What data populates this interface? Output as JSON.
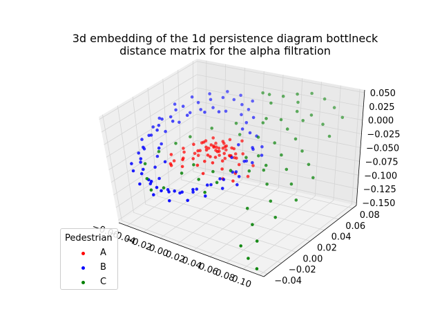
{
  "chart_data": {
    "type": "scatter",
    "projection": "3d",
    "title": [
      "3d embedding of the 1d persistence diagram bottlneck",
      "distance matrix for the alpha filtration"
    ],
    "x_ticks": [
      "−0.06",
      "−0.04",
      "−0.02",
      "0.00",
      "0.02",
      "0.04",
      "0.06",
      "0.08",
      "0.10"
    ],
    "y_ticks": [
      "−0.04",
      "−0.02",
      "0.00",
      "0.02",
      "0.04",
      "0.06",
      "0.08"
    ],
    "z_ticks": [
      "0.050",
      "0.025",
      "0.000",
      "−0.025",
      "−0.050",
      "−0.075",
      "−0.100",
      "−0.125",
      "−0.150"
    ],
    "xlim": [
      -0.07,
      0.105
    ],
    "ylim": [
      -0.045,
      0.085
    ],
    "zlim": [
      -0.155,
      0.055
    ],
    "grid": true,
    "legend": {
      "title": "Pedestrian",
      "placement": "lower-left"
    },
    "series": [
      {
        "name": "A",
        "color": "#ff0000",
        "points": [
          [
            0.0,
            0.02,
            -0.03
          ],
          [
            0.004,
            0.024,
            -0.034
          ],
          [
            -0.004,
            0.018,
            -0.026
          ],
          [
            0.006,
            0.016,
            -0.032
          ],
          [
            -0.002,
            0.026,
            -0.038
          ],
          [
            0.002,
            0.014,
            -0.024
          ],
          [
            0.008,
            0.022,
            -0.028
          ],
          [
            -0.006,
            0.024,
            -0.034
          ],
          [
            0.01,
            0.018,
            -0.036
          ],
          [
            -0.008,
            0.016,
            -0.03
          ],
          [
            0.001,
            0.028,
            -0.026
          ],
          [
            0.005,
            0.012,
            -0.04
          ],
          [
            -0.003,
            0.01,
            -0.028
          ],
          [
            0.012,
            0.026,
            -0.032
          ],
          [
            -0.01,
            0.022,
            -0.038
          ],
          [
            0.003,
            0.02,
            -0.044
          ],
          [
            0.007,
            0.03,
            -0.022
          ],
          [
            -0.005,
            0.014,
            -0.042
          ],
          [
            0.009,
            0.01,
            -0.026
          ],
          [
            -0.001,
            0.032,
            -0.034
          ],
          [
            0.014,
            0.02,
            -0.04
          ],
          [
            -0.012,
            0.018,
            -0.024
          ],
          [
            0.011,
            0.014,
            -0.046
          ],
          [
            -0.007,
            0.028,
            -0.046
          ],
          [
            0.016,
            0.024,
            -0.03
          ],
          [
            -0.014,
            0.012,
            -0.036
          ],
          [
            0.004,
            0.006,
            -0.034
          ],
          [
            0.0,
            0.034,
            -0.04
          ],
          [
            0.018,
            0.016,
            -0.036
          ],
          [
            -0.016,
            0.026,
            -0.03
          ],
          [
            0.006,
            0.024,
            -0.052
          ],
          [
            -0.004,
            0.008,
            -0.048
          ],
          [
            0.013,
            0.03,
            -0.046
          ],
          [
            -0.011,
            0.03,
            -0.026
          ],
          [
            0.02,
            0.022,
            -0.044
          ],
          [
            -0.018,
            0.02,
            -0.044
          ],
          [
            0.008,
            0.004,
            -0.042
          ],
          [
            -0.002,
            0.036,
            -0.05
          ],
          [
            0.022,
            0.012,
            -0.03
          ],
          [
            -0.02,
            0.014,
            -0.028
          ],
          [
            0.01,
            0.032,
            -0.056
          ],
          [
            -0.009,
            0.004,
            -0.054
          ],
          [
            0.024,
            0.026,
            -0.038
          ],
          [
            -0.022,
            0.028,
            -0.038
          ],
          [
            0.015,
            0.008,
            -0.054
          ],
          [
            -0.015,
            0.006,
            -0.046
          ],
          [
            0.026,
            0.018,
            -0.05
          ],
          [
            -0.024,
            0.02,
            -0.052
          ],
          [
            0.017,
            0.034,
            -0.024
          ],
          [
            -0.013,
            0.036,
            -0.042
          ],
          [
            -0.03,
            0.01,
            -0.058
          ],
          [
            -0.034,
            0.016,
            -0.062
          ],
          [
            -0.026,
            0.004,
            -0.064
          ],
          [
            0.028,
            0.01,
            -0.058
          ],
          [
            -0.038,
            0.022,
            -0.05
          ],
          [
            0.032,
            0.03,
            -0.06
          ],
          [
            -0.04,
            0.006,
            -0.07
          ],
          [
            0.03,
            0.004,
            -0.066
          ],
          [
            -0.044,
            0.012,
            -0.056
          ],
          [
            0.0,
            0.0,
            -0.062
          ],
          [
            -0.028,
            0.03,
            -0.066
          ],
          [
            0.034,
            0.02,
            -0.07
          ],
          [
            -0.046,
            0.018,
            -0.074
          ],
          [
            -0.036,
            0.0,
            -0.06
          ],
          [
            0.022,
            0.0,
            -0.062
          ],
          [
            -0.042,
            0.028,
            -0.064
          ]
        ]
      },
      {
        "name": "B",
        "color": "#0000ff",
        "points": [
          [
            -0.05,
            0.04,
            0.01
          ],
          [
            -0.04,
            0.048,
            0.014
          ],
          [
            -0.03,
            0.052,
            0.02
          ],
          [
            -0.02,
            0.056,
            0.024
          ],
          [
            -0.01,
            0.058,
            0.022
          ],
          [
            0.0,
            0.056,
            0.018
          ],
          [
            0.01,
            0.052,
            0.016
          ],
          [
            0.02,
            0.046,
            0.01
          ],
          [
            -0.056,
            0.03,
            -0.004
          ],
          [
            -0.06,
            0.018,
            -0.012
          ],
          [
            -0.062,
            0.006,
            -0.022
          ],
          [
            -0.06,
            -0.006,
            -0.034
          ],
          [
            -0.056,
            -0.016,
            -0.046
          ],
          [
            -0.048,
            -0.024,
            -0.056
          ],
          [
            -0.038,
            -0.03,
            -0.066
          ],
          [
            -0.028,
            -0.032,
            -0.074
          ],
          [
            -0.016,
            -0.03,
            -0.078
          ],
          [
            -0.004,
            -0.026,
            -0.076
          ],
          [
            0.008,
            -0.02,
            -0.07
          ],
          [
            0.018,
            -0.012,
            -0.064
          ],
          [
            0.026,
            -0.004,
            -0.058
          ],
          [
            0.032,
            0.006,
            -0.05
          ],
          [
            0.034,
            0.018,
            -0.04
          ],
          [
            0.032,
            0.03,
            -0.03
          ],
          [
            0.028,
            0.04,
            -0.016
          ],
          [
            -0.046,
            0.044,
            -0.004
          ],
          [
            -0.052,
            0.036,
            -0.018
          ],
          [
            -0.058,
            0.024,
            -0.028
          ],
          [
            -0.054,
            0.012,
            -0.04
          ],
          [
            -0.05,
            0.0,
            -0.052
          ],
          [
            -0.044,
            -0.012,
            -0.06
          ],
          [
            -0.034,
            -0.02,
            -0.07
          ],
          [
            -0.022,
            -0.024,
            -0.082
          ],
          [
            -0.01,
            -0.022,
            -0.084
          ],
          [
            0.002,
            -0.018,
            -0.08
          ],
          [
            -0.036,
            0.046,
            0.004
          ],
          [
            -0.026,
            0.05,
            0.008
          ],
          [
            -0.014,
            0.052,
            0.004
          ],
          [
            0.004,
            0.05,
            0.006
          ],
          [
            0.014,
            0.044,
            0.0
          ],
          [
            0.024,
            0.036,
            -0.008
          ],
          [
            -0.058,
            0.04,
            0.0
          ],
          [
            -0.064,
            0.028,
            -0.01
          ],
          [
            -0.066,
            0.014,
            -0.03
          ],
          [
            -0.064,
            0.0,
            -0.044
          ],
          [
            -0.06,
            -0.012,
            -0.058
          ],
          [
            -0.052,
            -0.022,
            -0.068
          ],
          [
            -0.04,
            -0.026,
            -0.078
          ],
          [
            -0.03,
            -0.036,
            -0.06
          ],
          [
            -0.018,
            -0.038,
            -0.07
          ],
          [
            -0.006,
            -0.034,
            -0.068
          ],
          [
            0.012,
            -0.03,
            -0.06
          ],
          [
            0.022,
            -0.022,
            -0.054
          ],
          [
            0.03,
            -0.014,
            -0.046
          ],
          [
            0.036,
            -0.004,
            -0.04
          ],
          [
            0.038,
            0.01,
            -0.032
          ],
          [
            0.036,
            0.024,
            -0.02
          ],
          [
            -0.048,
            0.05,
            0.02
          ],
          [
            -0.034,
            0.056,
            0.026
          ],
          [
            -0.02,
            0.062,
            0.03
          ],
          [
            -0.006,
            0.062,
            0.028
          ],
          [
            0.008,
            0.06,
            0.024
          ],
          [
            -0.062,
            0.044,
            0.006
          ],
          [
            -0.068,
            0.02,
            -0.02
          ],
          [
            -0.066,
            -0.006,
            -0.048
          ],
          [
            -0.058,
            -0.026,
            -0.062
          ],
          [
            -0.044,
            -0.036,
            -0.072
          ],
          [
            -0.026,
            -0.04,
            -0.08
          ],
          [
            -0.008,
            -0.04,
            -0.082
          ],
          [
            0.01,
            -0.036,
            -0.076
          ],
          [
            0.024,
            -0.028,
            -0.068
          ],
          [
            0.034,
            -0.016,
            -0.06
          ],
          [
            0.04,
            0.0,
            -0.05
          ],
          [
            0.042,
            0.016,
            -0.038
          ],
          [
            0.04,
            0.032,
            -0.024
          ],
          [
            -0.054,
            0.008,
            -0.01
          ],
          [
            -0.046,
            0.02,
            0.0
          ],
          [
            -0.038,
            0.03,
            0.006
          ],
          [
            -0.024,
            0.036,
            0.012
          ],
          [
            -0.044,
            -0.004,
            -0.03
          ],
          [
            -0.032,
            -0.012,
            -0.044
          ],
          [
            0.016,
            0.036,
            -0.004
          ],
          [
            0.024,
            0.02,
            -0.016
          ],
          [
            0.026,
            0.008,
            -0.028
          ],
          [
            -0.012,
            0.04,
            0.014
          ],
          [
            -0.07,
            0.032,
            -0.014
          ],
          [
            -0.072,
            0.008,
            -0.036
          ],
          [
            -0.064,
            -0.02,
            -0.056
          ],
          [
            0.044,
            -0.008,
            -0.056
          ],
          [
            0.046,
            0.024,
            -0.03
          ]
        ]
      },
      {
        "name": "C",
        "color": "#008000",
        "points": [
          [
            0.04,
            0.06,
            0.044
          ],
          [
            0.05,
            0.066,
            0.046
          ],
          [
            0.062,
            0.07,
            0.048
          ],
          [
            0.074,
            0.072,
            0.04
          ],
          [
            0.086,
            0.07,
            0.03
          ],
          [
            0.098,
            0.066,
            0.02
          ],
          [
            0.058,
            0.056,
            0.026
          ],
          [
            0.07,
            0.06,
            0.02
          ],
          [
            0.084,
            0.058,
            0.01
          ],
          [
            0.096,
            0.052,
            -0.002
          ],
          [
            0.046,
            0.05,
            0.012
          ],
          [
            0.056,
            0.046,
            0.002
          ],
          [
            0.068,
            0.042,
            -0.008
          ],
          [
            0.08,
            0.036,
            -0.02
          ],
          [
            0.092,
            0.03,
            -0.034
          ],
          [
            0.102,
            0.024,
            -0.048
          ],
          [
            0.052,
            0.034,
            -0.014
          ],
          [
            0.064,
            0.028,
            -0.026
          ],
          [
            0.076,
            0.02,
            -0.04
          ],
          [
            0.088,
            0.012,
            -0.054
          ],
          [
            0.1,
            0.004,
            -0.07
          ],
          [
            0.044,
            0.022,
            -0.03
          ],
          [
            0.056,
            0.014,
            -0.044
          ],
          [
            0.066,
            0.006,
            -0.058
          ],
          [
            0.078,
            -0.004,
            -0.074
          ],
          [
            0.09,
            -0.012,
            -0.09
          ],
          [
            0.06,
            -0.014,
            -0.086
          ],
          [
            0.072,
            -0.022,
            -0.102
          ],
          [
            0.084,
            -0.03,
            -0.118
          ],
          [
            0.07,
            -0.036,
            -0.128
          ],
          [
            0.082,
            -0.04,
            -0.14
          ],
          [
            0.094,
            -0.042,
            -0.15
          ],
          [
            0.038,
            0.04,
            0.02
          ],
          [
            0.032,
            0.054,
            0.034
          ],
          [
            0.024,
            0.062,
            0.04
          ],
          [
            0.014,
            0.066,
            0.036
          ],
          [
            0.03,
            0.046,
            0.004
          ],
          [
            0.036,
            0.032,
            -0.008
          ],
          [
            0.04,
            0.01,
            -0.024
          ],
          [
            0.034,
            -0.004,
            -0.038
          ],
          [
            0.028,
            -0.016,
            -0.052
          ],
          [
            0.022,
            -0.026,
            -0.064
          ],
          [
            -0.06,
            -0.006,
            -0.066
          ],
          [
            -0.05,
            -0.018,
            -0.08
          ],
          [
            -0.04,
            -0.026,
            -0.09
          ],
          [
            -0.03,
            -0.02,
            -0.086
          ],
          [
            -0.056,
            0.01,
            -0.054
          ],
          [
            -0.046,
            0.022,
            -0.044
          ],
          [
            -0.036,
            0.03,
            -0.034
          ],
          [
            -0.02,
            0.04,
            -0.02
          ],
          [
            0.0,
            0.048,
            -0.01
          ],
          [
            0.01,
            0.04,
            -0.02
          ],
          [
            -0.01,
            0.0,
            -0.05
          ],
          [
            0.016,
            -0.006,
            -0.046
          ],
          [
            0.006,
            -0.014,
            -0.058
          ],
          [
            -0.016,
            -0.01,
            -0.06
          ],
          [
            0.048,
            0.004,
            -0.04
          ],
          [
            0.06,
            0.012,
            -0.032
          ],
          [
            0.054,
            0.062,
            0.036
          ],
          [
            0.066,
            0.054,
            0.014
          ]
        ]
      }
    ]
  }
}
